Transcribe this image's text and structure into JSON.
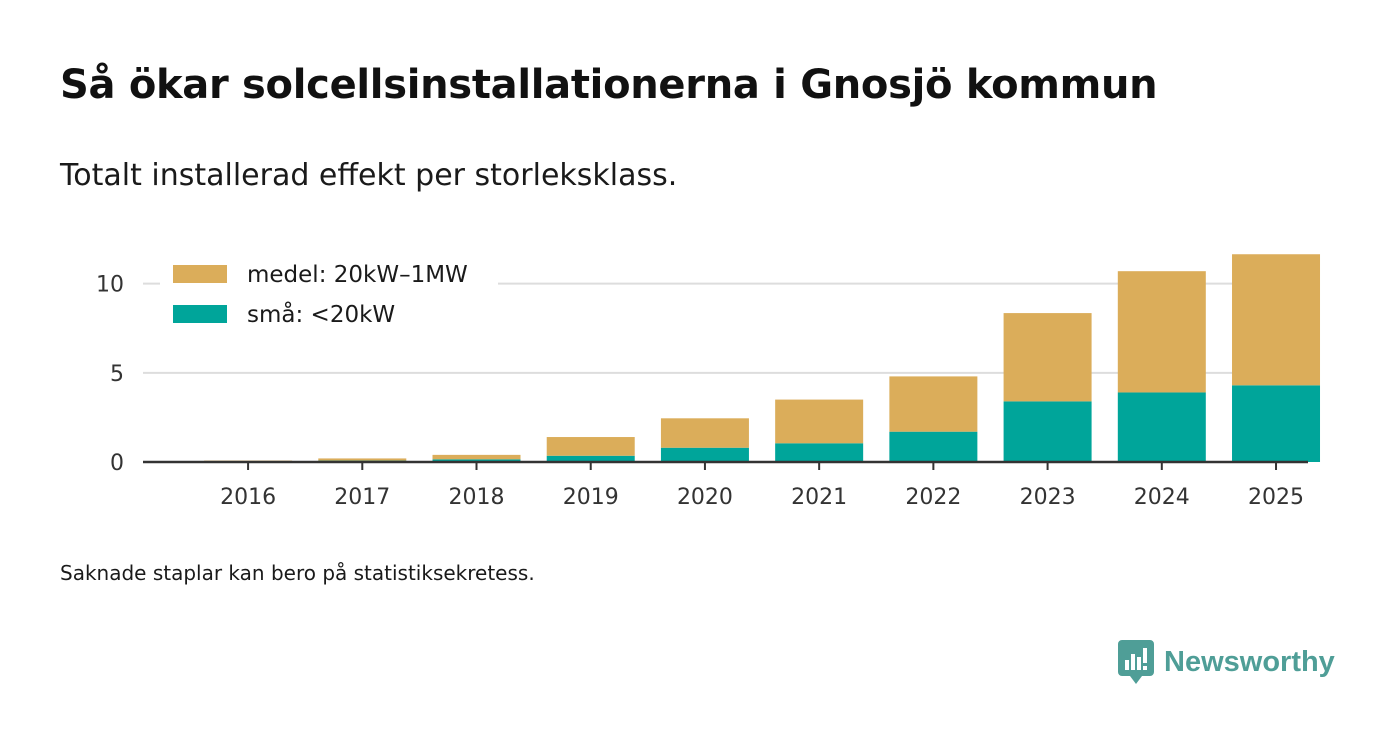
{
  "header": {
    "title": "Så ökar solcellsinstallationerna i Gnosjö kommun",
    "subtitle": "Totalt installerad effekt per storleksklass."
  },
  "footer": {
    "note": "Saknade staplar kan bero på statistiksekretess.",
    "brand": "Newsworthy"
  },
  "colors": {
    "medel": "#dbad5a",
    "sma": "#00a59a",
    "grid": "#dddddd",
    "axis": "#333333",
    "brand": "#4f9e97"
  },
  "chart_data": {
    "type": "bar",
    "stacked": true,
    "title": "Så ökar solcellsinstallationerna i Gnosjö kommun",
    "subtitle": "Totalt installerad effekt per storleksklass.",
    "xlabel": "",
    "ylabel": "",
    "ylim": [
      0,
      12
    ],
    "yticks": [
      0,
      5,
      10
    ],
    "grid": true,
    "legend_position": "top-left",
    "categories": [
      "2016",
      "2017",
      "2018",
      "2019",
      "2020",
      "2021",
      "2022",
      "2023",
      "2024",
      "2025"
    ],
    "series": [
      {
        "name": "små: <20kW",
        "color": "#00a59a",
        "values": [
          0.03,
          0.08,
          0.15,
          0.35,
          0.8,
          1.05,
          1.7,
          3.4,
          3.9,
          4.3
        ]
      },
      {
        "name": "medel: 20kW–1MW",
        "color": "#dbad5a",
        "values": [
          0.05,
          0.12,
          0.25,
          1.05,
          1.65,
          2.45,
          3.1,
          4.95,
          6.8,
          7.35
        ]
      }
    ],
    "legend": [
      "medel: 20kW–1MW",
      "små: <20kW"
    ]
  }
}
